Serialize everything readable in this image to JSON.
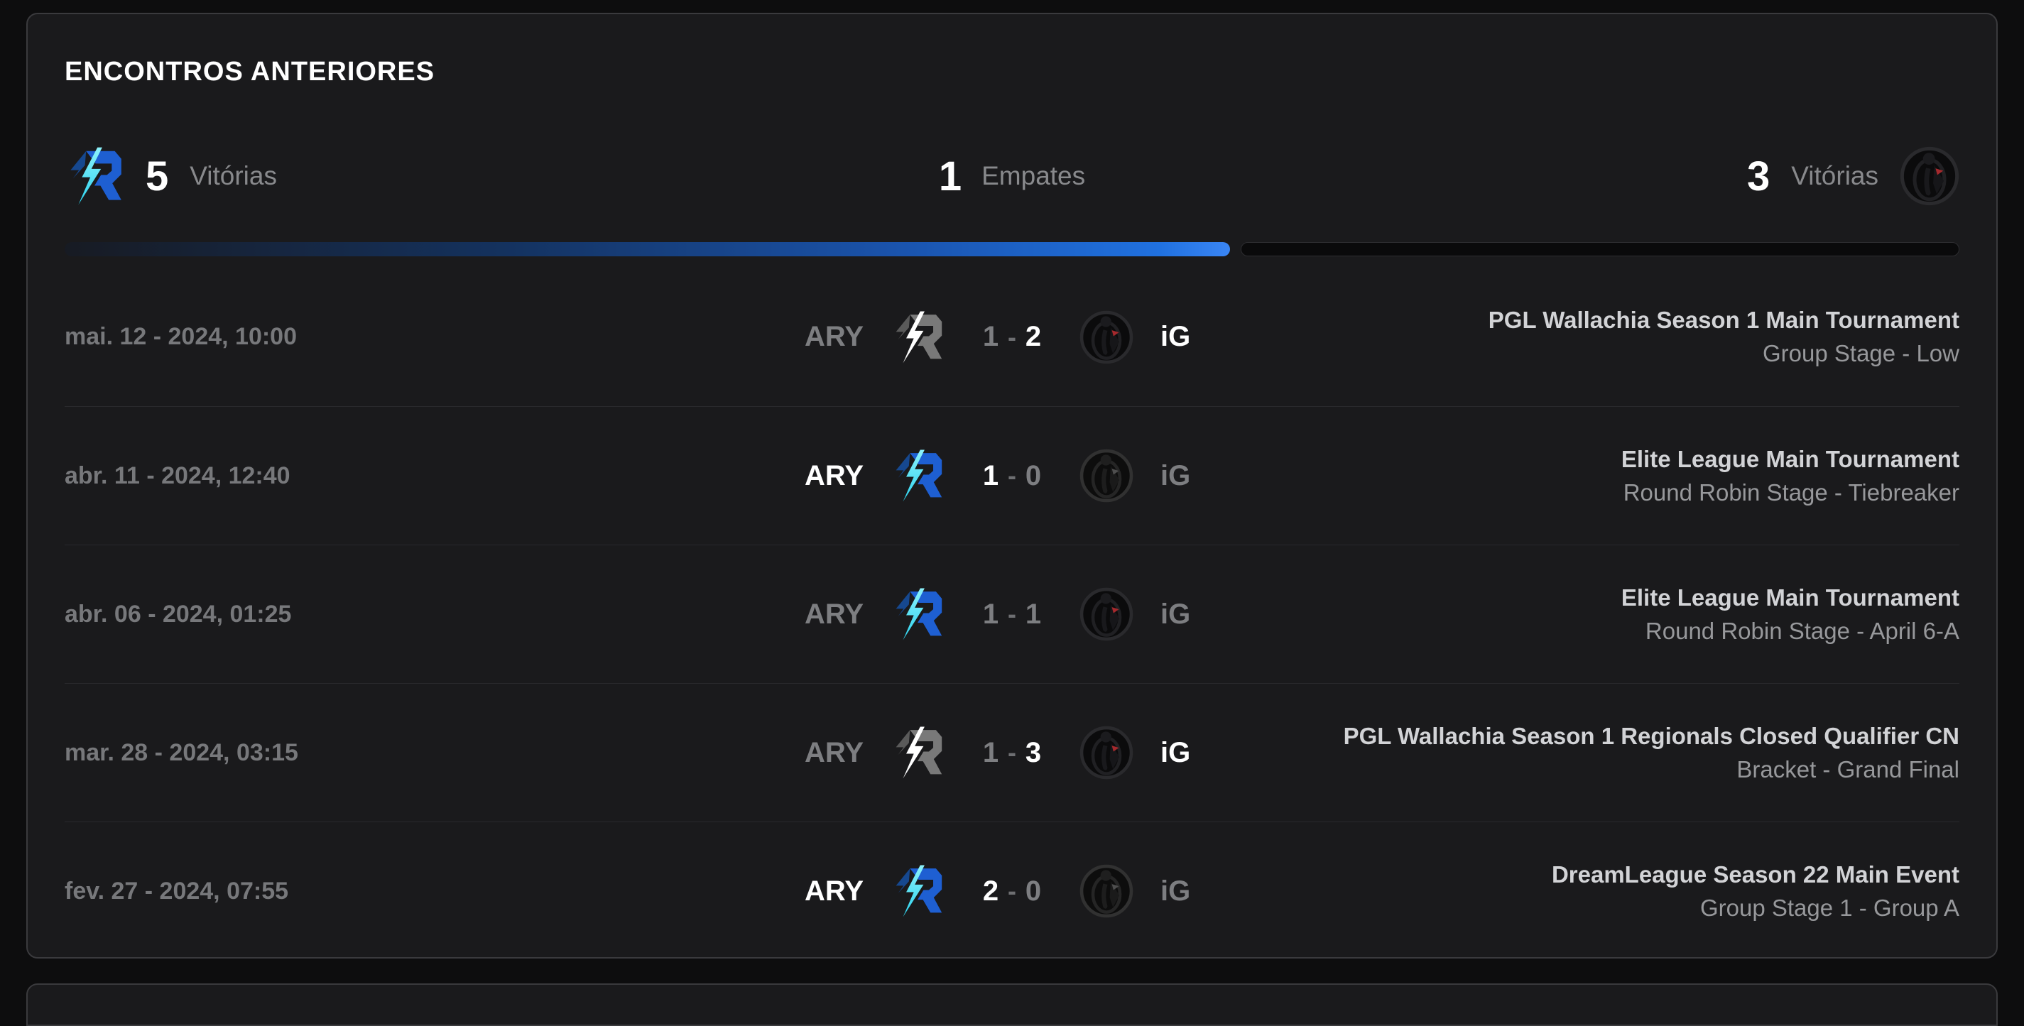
{
  "header": {
    "title": "ENCONTROS ANTERIORES"
  },
  "summary": {
    "left": {
      "logo_icon": "aurora-logo",
      "count": "5",
      "label": "Vitórias"
    },
    "center": {
      "count": "1",
      "label": "Empates"
    },
    "right": {
      "count": "3",
      "label": "Vitórias",
      "logo_icon": "ig-logo"
    }
  },
  "progress": {
    "left_percent": 61.5,
    "accent_blue": "#2478ec",
    "track_color": "#0a0a0b"
  },
  "score_separator": "-",
  "colors": {
    "win_text": "#ffffff",
    "muted_text": "#7d7e81",
    "card_background": "#1a1a1c"
  },
  "matches": [
    {
      "date": "mai. 12 - 2024, 10:00",
      "left_team": "ARY",
      "left_score": "1",
      "right_score": "2",
      "right_team": "iG",
      "winner": "right",
      "tournament": "PGL Wallachia Season 1 Main Tournament",
      "stage": "Group Stage - Low"
    },
    {
      "date": "abr. 11 - 2024, 12:40",
      "left_team": "ARY",
      "left_score": "1",
      "right_score": "0",
      "right_team": "iG",
      "winner": "left",
      "tournament": "Elite League Main Tournament",
      "stage": "Round Robin Stage - Tiebreaker"
    },
    {
      "date": "abr. 06 - 2024, 01:25",
      "left_team": "ARY",
      "left_score": "1",
      "right_score": "1",
      "right_team": "iG",
      "winner": "draw",
      "tournament": "Elite League Main Tournament",
      "stage": "Round Robin Stage - April 6-A"
    },
    {
      "date": "mar. 28 - 2024, 03:15",
      "left_team": "ARY",
      "left_score": "1",
      "right_score": "3",
      "right_team": "iG",
      "winner": "right",
      "tournament": "PGL Wallachia Season 1 Regionals Closed Qualifier CN",
      "stage": "Bracket - Grand Final"
    },
    {
      "date": "fev. 27 - 2024, 07:55",
      "left_team": "ARY",
      "left_score": "2",
      "right_score": "0",
      "right_team": "iG",
      "winner": "left",
      "tournament": "DreamLeague Season 22 Main Event",
      "stage": "Group Stage 1 - Group A"
    }
  ]
}
